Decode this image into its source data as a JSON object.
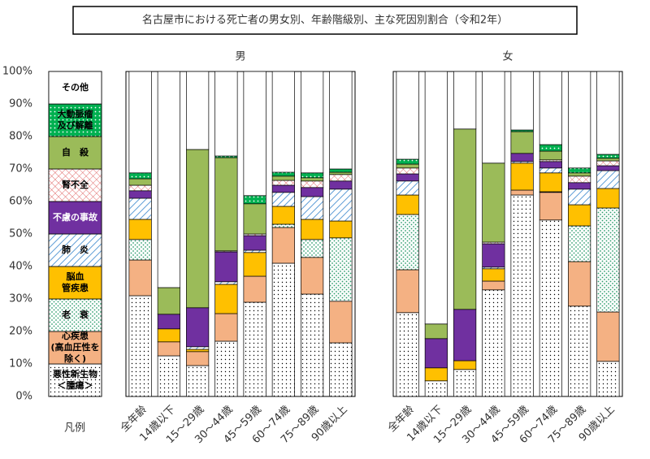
{
  "chart_data": {
    "type": "bar",
    "stacked": true,
    "title": "名古屋市における死亡者の男女別、年齢階級別、主な死因別割合（令和2年）",
    "legend_title": "凡例",
    "ylim": [
      0,
      100
    ],
    "yticks": [
      {
        "value": 0,
        "label": "0%"
      },
      {
        "value": 10,
        "label": "10%"
      },
      {
        "value": 20,
        "label": "20%"
      },
      {
        "value": 30,
        "label": "30%"
      },
      {
        "value": 40,
        "label": "40%"
      },
      {
        "value": 50,
        "label": "50%"
      },
      {
        "value": 60,
        "label": "60%"
      },
      {
        "value": 70,
        "label": "70%"
      },
      {
        "value": 80,
        "label": "80%"
      },
      {
        "value": 90,
        "label": "90%"
      },
      {
        "value": 100,
        "label": "100%"
      }
    ],
    "series": [
      {
        "name": "悪性新生物\n＜腫瘍＞",
        "color": "#ffffff",
        "pattern": "dots"
      },
      {
        "name": "心疾患\n(高血圧性を除く)",
        "color": "#f4b183",
        "pattern": null
      },
      {
        "name": "老　衰",
        "color": "#ffffff",
        "pattern": "green-dots"
      },
      {
        "name": "脳血\n管疾患",
        "color": "#ffc000",
        "pattern": null
      },
      {
        "name": "肺　炎",
        "color": "#ffffff",
        "pattern": "hatch"
      },
      {
        "name": "不慮の事故",
        "color": "#7030a0",
        "pattern": null
      },
      {
        "name": "腎不全",
        "color": "#ffffff",
        "pattern": "cross"
      },
      {
        "name": "自　殺",
        "color": "#9bbb59",
        "pattern": null
      },
      {
        "name": "大動脈瘤\n及び解離",
        "color": "#00b050",
        "pattern": "white-dots"
      },
      {
        "name": "その他",
        "color": "#ffffff",
        "pattern": null
      }
    ],
    "panels": [
      {
        "title": "男",
        "categories": [
          "全年齢",
          "14歳以下",
          "15～29歳",
          "30～44歳",
          "45～59歳",
          "60～74歳",
          "75～89歳",
          "90歳以上"
        ],
        "values": [
          [
            31,
            12.5,
            9.5,
            17,
            29,
            41,
            31.5,
            16.5
          ],
          [
            11,
            4.3,
            4.3,
            8.5,
            8,
            11,
            11.3,
            12.8
          ],
          [
            6.3,
            0,
            0,
            0,
            0,
            1,
            5.5,
            19.5
          ],
          [
            6.2,
            4,
            0.7,
            9,
            7.3,
            5.5,
            6.2,
            5.2
          ],
          [
            6.5,
            0,
            0.8,
            0.8,
            0.7,
            4.3,
            7,
            9.8
          ],
          [
            2.3,
            4.5,
            12,
            9.2,
            4.5,
            2.2,
            2.8,
            2.5
          ],
          [
            1.7,
            0,
            0,
            0.3,
            0.5,
            1.5,
            2,
            2
          ],
          [
            2,
            8.2,
            48.7,
            28.7,
            9.3,
            1.3,
            1,
            0.7
          ],
          [
            1.8,
            0,
            0,
            0.5,
            2.5,
            1.2,
            1.5,
            1
          ],
          [
            31.2,
            66.5,
            24,
            26,
            38.2,
            31,
            31.2,
            30
          ]
        ]
      },
      {
        "title": "女",
        "categories": [
          "全年齢",
          "14歳以下",
          "15～29歳",
          "30～44歳",
          "45～59歳",
          "60～74歳",
          "75～89歳",
          "90歳以上"
        ],
        "values": [
          [
            25.8,
            4.8,
            8.3,
            32.8,
            62,
            54.3,
            27.8,
            10.8
          ],
          [
            13.2,
            0,
            0,
            2.7,
            1.5,
            8.5,
            13.7,
            15.2
          ],
          [
            17,
            0,
            0,
            0,
            0,
            0.2,
            11,
            32
          ],
          [
            6,
            4,
            2.7,
            3.8,
            8.3,
            5.8,
            6.5,
            6
          ],
          [
            4.3,
            0,
            0,
            0.5,
            0.5,
            1.5,
            4.8,
            5.5
          ],
          [
            2.2,
            9,
            15.8,
            7.2,
            2.5,
            2,
            2,
            1.5
          ],
          [
            1.8,
            0,
            0,
            0.5,
            0,
            0.5,
            2,
            1.5
          ],
          [
            1.2,
            4.5,
            55.5,
            24.3,
            6.7,
            2.7,
            1,
            0.8
          ],
          [
            1.5,
            0,
            0,
            0,
            0.5,
            2,
            1.5,
            1.2
          ],
          [
            27,
            77.7,
            17.7,
            28.2,
            18,
            22.5,
            29.7,
            25.5
          ]
        ]
      }
    ]
  }
}
